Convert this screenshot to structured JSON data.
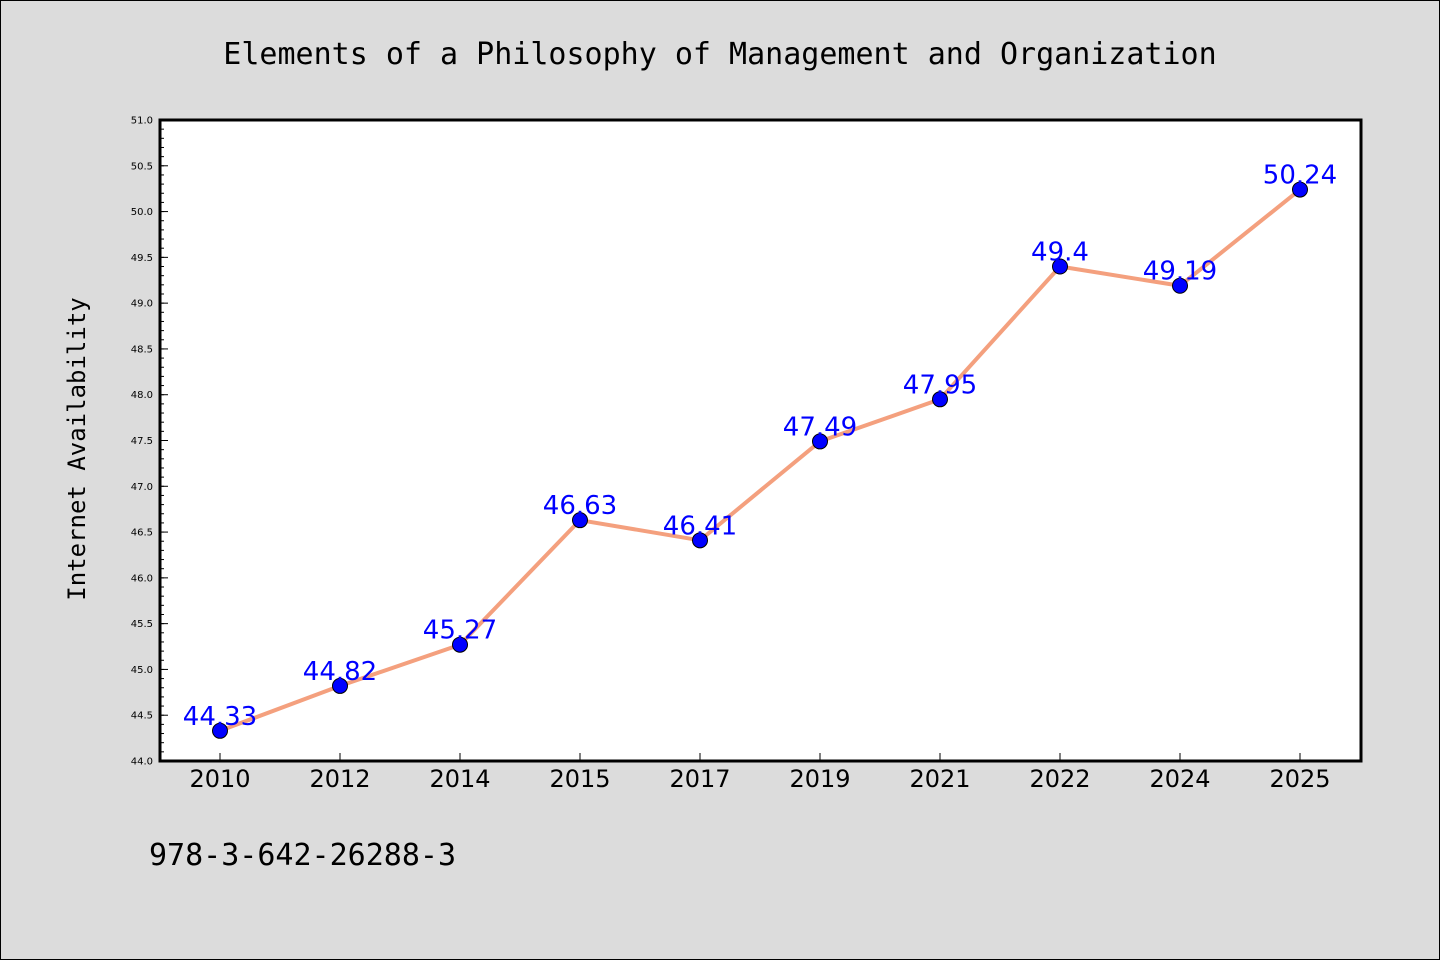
{
  "chart_data": {
    "type": "line",
    "title": "Elements of a Philosophy of Management and Organization",
    "xlabel": "",
    "ylabel": "Internet Availability",
    "categories": [
      "2010",
      "2012",
      "2014",
      "2015",
      "2017",
      "2019",
      "2021",
      "2022",
      "2024",
      "2025"
    ],
    "series": [
      {
        "values": [
          44.33,
          44.82,
          45.27,
          46.63,
          46.41,
          47.49,
          47.95,
          49.4,
          49.19,
          50.24
        ],
        "data_labels": [
          "44.33",
          "44.82",
          "45.27",
          "46.63",
          "46.41",
          "47.49",
          "47.95",
          "49.4",
          "49.19",
          "50.24"
        ]
      }
    ],
    "ylim": [
      44.0,
      51.0
    ],
    "yticks": [
      "44.0",
      "44.5",
      "45.0",
      "45.5",
      "46.0",
      "46.5",
      "47.0",
      "47.5",
      "48.0",
      "48.5",
      "49.0",
      "49.5",
      "50.0",
      "50.5",
      "51.0"
    ],
    "grid": false,
    "legend": "none",
    "colors": {
      "line": "#f4a07e",
      "marker": "#0000ff",
      "data_label": "#0000ff",
      "figure_background": "#dcdcdc",
      "plot_background": "#ffffff"
    }
  },
  "footer": {
    "isbn": "978-3-642-26288-3"
  }
}
